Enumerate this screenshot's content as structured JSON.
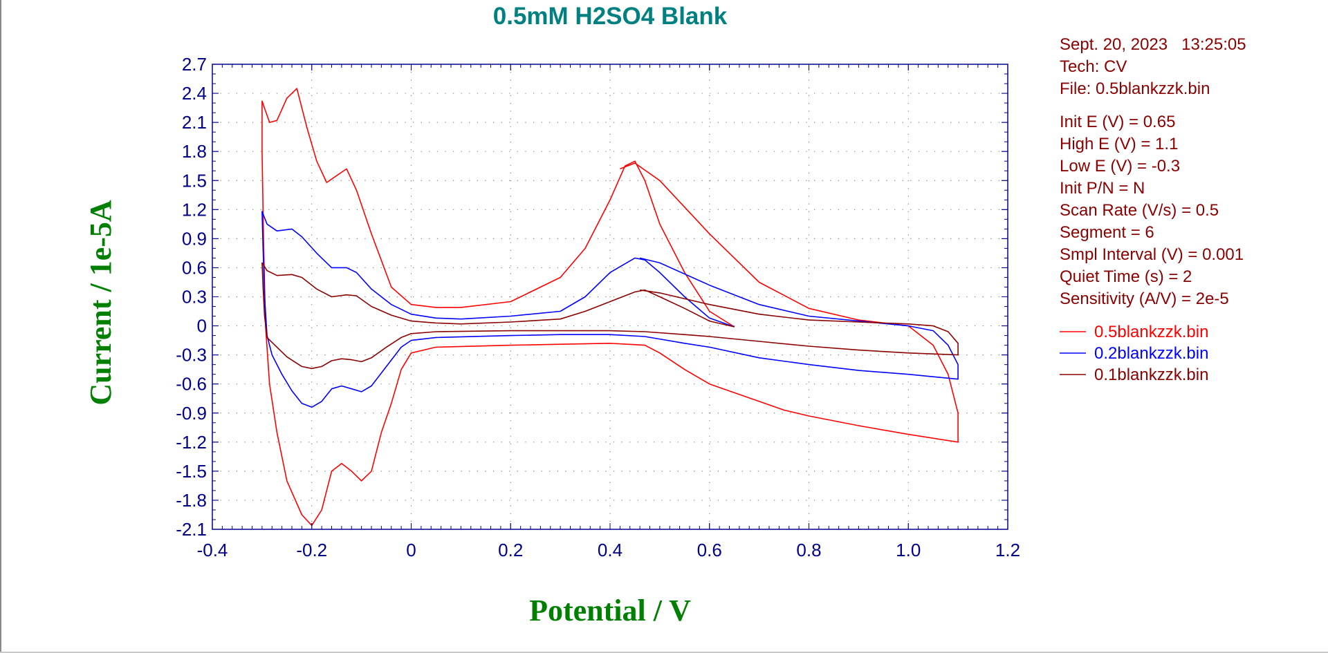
{
  "chart_data": {
    "type": "line",
    "title": "0.5mM H2SO4 Blank",
    "xlabel": "Potential / V",
    "ylabel": "Current / 1e-5A",
    "xlim": [
      -0.4,
      1.2
    ],
    "ylim": [
      2.7,
      -2.1
    ],
    "x_ticks": [
      "-0.4",
      "-0.2",
      "0",
      "0.2",
      "0.4",
      "0.6",
      "0.8",
      "1.0",
      "1.2"
    ],
    "y_ticks": [
      "-2.1",
      "-1.8",
      "-1.5",
      "-1.2",
      "-0.9",
      "-0.6",
      "-0.3",
      "0",
      "0.3",
      "0.6",
      "0.9",
      "1.2",
      "1.5",
      "1.8",
      "2.1",
      "2.4",
      "2.7"
    ],
    "grid": "dotted",
    "legend_position": "right",
    "series": [
      {
        "name": "0.5blankzzk.bin",
        "color": "#ff0000",
        "points": [
          [
            0.65,
            -0.01
          ],
          [
            0.6,
            0.15
          ],
          [
            0.55,
            0.55
          ],
          [
            0.5,
            1.05
          ],
          [
            0.47,
            1.5
          ],
          [
            0.45,
            1.7
          ],
          [
            0.43,
            1.65
          ],
          [
            0.4,
            1.3
          ],
          [
            0.35,
            0.8
          ],
          [
            0.3,
            0.5
          ],
          [
            0.2,
            0.25
          ],
          [
            0.1,
            0.19
          ],
          [
            0.05,
            0.19
          ],
          [
            0.0,
            0.22
          ],
          [
            -0.04,
            0.4
          ],
          [
            -0.08,
            0.95
          ],
          [
            -0.11,
            1.4
          ],
          [
            -0.13,
            1.62
          ],
          [
            -0.15,
            1.55
          ],
          [
            -0.17,
            1.48
          ],
          [
            -0.19,
            1.7
          ],
          [
            -0.21,
            2.05
          ],
          [
            -0.23,
            2.45
          ],
          [
            -0.25,
            2.35
          ],
          [
            -0.27,
            2.12
          ],
          [
            -0.285,
            2.1
          ],
          [
            -0.3,
            2.32
          ],
          [
            -0.3,
            1.8
          ],
          [
            -0.297,
            0.9
          ],
          [
            -0.293,
            0.0
          ],
          [
            -0.285,
            -0.6
          ],
          [
            -0.27,
            -1.1
          ],
          [
            -0.25,
            -1.6
          ],
          [
            -0.22,
            -1.95
          ],
          [
            -0.2,
            -2.06
          ],
          [
            -0.18,
            -1.9
          ],
          [
            -0.16,
            -1.5
          ],
          [
            -0.14,
            -1.42
          ],
          [
            -0.12,
            -1.5
          ],
          [
            -0.1,
            -1.6
          ],
          [
            -0.08,
            -1.5
          ],
          [
            -0.06,
            -1.1
          ],
          [
            -0.04,
            -0.8
          ],
          [
            -0.02,
            -0.45
          ],
          [
            0.0,
            -0.28
          ],
          [
            0.05,
            -0.22
          ],
          [
            0.2,
            -0.2
          ],
          [
            0.3,
            -0.19
          ],
          [
            0.4,
            -0.18
          ],
          [
            0.47,
            -0.2
          ],
          [
            0.5,
            -0.28
          ],
          [
            0.55,
            -0.45
          ],
          [
            0.6,
            -0.6
          ],
          [
            0.7,
            -0.78
          ],
          [
            0.75,
            -0.87
          ],
          [
            0.8,
            -0.93
          ],
          [
            0.9,
            -1.03
          ],
          [
            1.0,
            -1.12
          ],
          [
            1.1,
            -1.2
          ],
          [
            1.1,
            -0.9
          ],
          [
            1.08,
            -0.5
          ],
          [
            1.05,
            -0.2
          ],
          [
            1.0,
            0.0
          ],
          [
            0.9,
            0.06
          ],
          [
            0.8,
            0.18
          ],
          [
            0.7,
            0.45
          ],
          [
            0.6,
            0.95
          ],
          [
            0.5,
            1.5
          ],
          [
            0.45,
            1.68
          ],
          [
            0.42,
            1.62
          ]
        ]
      },
      {
        "name": "0.2blankzzk.bin",
        "color": "#0000ff",
        "points": [
          [
            0.65,
            -0.01
          ],
          [
            0.6,
            0.08
          ],
          [
            0.55,
            0.3
          ],
          [
            0.5,
            0.55
          ],
          [
            0.47,
            0.68
          ],
          [
            0.45,
            0.7
          ],
          [
            0.4,
            0.55
          ],
          [
            0.35,
            0.3
          ],
          [
            0.3,
            0.15
          ],
          [
            0.2,
            0.1
          ],
          [
            0.1,
            0.07
          ],
          [
            0.05,
            0.08
          ],
          [
            0.0,
            0.12
          ],
          [
            -0.04,
            0.22
          ],
          [
            -0.08,
            0.38
          ],
          [
            -0.11,
            0.55
          ],
          [
            -0.13,
            0.6
          ],
          [
            -0.16,
            0.6
          ],
          [
            -0.19,
            0.75
          ],
          [
            -0.22,
            0.92
          ],
          [
            -0.24,
            1.0
          ],
          [
            -0.27,
            0.98
          ],
          [
            -0.29,
            1.05
          ],
          [
            -0.3,
            1.18
          ],
          [
            -0.298,
            0.8
          ],
          [
            -0.295,
            0.3
          ],
          [
            -0.29,
            -0.1
          ],
          [
            -0.28,
            -0.3
          ],
          [
            -0.26,
            -0.5
          ],
          [
            -0.24,
            -0.67
          ],
          [
            -0.22,
            -0.8
          ],
          [
            -0.2,
            -0.84
          ],
          [
            -0.18,
            -0.78
          ],
          [
            -0.16,
            -0.65
          ],
          [
            -0.14,
            -0.62
          ],
          [
            -0.12,
            -0.65
          ],
          [
            -0.1,
            -0.68
          ],
          [
            -0.08,
            -0.62
          ],
          [
            -0.05,
            -0.42
          ],
          [
            -0.02,
            -0.22
          ],
          [
            0.0,
            -0.15
          ],
          [
            0.05,
            -0.12
          ],
          [
            0.2,
            -0.1
          ],
          [
            0.3,
            -0.09
          ],
          [
            0.4,
            -0.09
          ],
          [
            0.47,
            -0.11
          ],
          [
            0.55,
            -0.18
          ],
          [
            0.6,
            -0.22
          ],
          [
            0.7,
            -0.33
          ],
          [
            0.8,
            -0.4
          ],
          [
            0.9,
            -0.46
          ],
          [
            1.0,
            -0.5
          ],
          [
            1.1,
            -0.55
          ],
          [
            1.1,
            -0.4
          ],
          [
            1.08,
            -0.2
          ],
          [
            1.05,
            -0.05
          ],
          [
            1.0,
            0.0
          ],
          [
            0.9,
            0.05
          ],
          [
            0.8,
            0.1
          ],
          [
            0.7,
            0.22
          ],
          [
            0.6,
            0.42
          ],
          [
            0.5,
            0.65
          ],
          [
            0.46,
            0.7
          ]
        ]
      },
      {
        "name": "0.1blankzzk.bin",
        "color": "#8b0000",
        "points": [
          [
            0.65,
            -0.01
          ],
          [
            0.6,
            0.05
          ],
          [
            0.55,
            0.18
          ],
          [
            0.5,
            0.3
          ],
          [
            0.47,
            0.37
          ],
          [
            0.45,
            0.35
          ],
          [
            0.4,
            0.25
          ],
          [
            0.35,
            0.15
          ],
          [
            0.3,
            0.07
          ],
          [
            0.2,
            0.04
          ],
          [
            0.1,
            0.02
          ],
          [
            0.05,
            0.03
          ],
          [
            0.0,
            0.05
          ],
          [
            -0.04,
            0.11
          ],
          [
            -0.08,
            0.2
          ],
          [
            -0.11,
            0.31
          ],
          [
            -0.13,
            0.32
          ],
          [
            -0.16,
            0.3
          ],
          [
            -0.19,
            0.38
          ],
          [
            -0.22,
            0.5
          ],
          [
            -0.24,
            0.53
          ],
          [
            -0.27,
            0.52
          ],
          [
            -0.29,
            0.57
          ],
          [
            -0.3,
            0.65
          ],
          [
            -0.298,
            0.4
          ],
          [
            -0.295,
            0.1
          ],
          [
            -0.29,
            -0.12
          ],
          [
            -0.27,
            -0.22
          ],
          [
            -0.25,
            -0.32
          ],
          [
            -0.22,
            -0.42
          ],
          [
            -0.2,
            -0.44
          ],
          [
            -0.18,
            -0.42
          ],
          [
            -0.16,
            -0.36
          ],
          [
            -0.14,
            -0.34
          ],
          [
            -0.12,
            -0.35
          ],
          [
            -0.1,
            -0.37
          ],
          [
            -0.08,
            -0.33
          ],
          [
            -0.05,
            -0.22
          ],
          [
            -0.02,
            -0.12
          ],
          [
            0.0,
            -0.08
          ],
          [
            0.05,
            -0.06
          ],
          [
            0.2,
            -0.05
          ],
          [
            0.3,
            -0.05
          ],
          [
            0.4,
            -0.05
          ],
          [
            0.47,
            -0.06
          ],
          [
            0.55,
            -0.09
          ],
          [
            0.6,
            -0.11
          ],
          [
            0.7,
            -0.16
          ],
          [
            0.8,
            -0.21
          ],
          [
            0.9,
            -0.25
          ],
          [
            1.0,
            -0.28
          ],
          [
            1.1,
            -0.3
          ],
          [
            1.1,
            -0.18
          ],
          [
            1.08,
            -0.06
          ],
          [
            1.05,
            0.0
          ],
          [
            1.0,
            0.02
          ],
          [
            0.9,
            0.04
          ],
          [
            0.8,
            0.06
          ],
          [
            0.7,
            0.12
          ],
          [
            0.6,
            0.22
          ],
          [
            0.5,
            0.34
          ],
          [
            0.46,
            0.37
          ]
        ]
      }
    ]
  },
  "info": {
    "date_time": "Sept. 20, 2023   13:25:05",
    "tech": "Tech: CV",
    "file": "File: 0.5blankzzk.bin",
    "init_e": "Init E (V) = 0.65",
    "high_e": "High E (V) = 1.1",
    "low_e": "Low E (V) = -0.3",
    "init_pn": "Init P/N = N",
    "scan_rate": "Scan Rate (V/s) = 0.5",
    "segment": "Segment = 6",
    "smpl_interval": "Smpl Interval (V) = 0.001",
    "quiet_time": "Quiet Time (s) = 2",
    "sensitivity": "Sensitivity (A/V) = 2e-5"
  },
  "colors": {
    "axis": "#00008b",
    "title": "#008080",
    "axis_title": "#008000",
    "info_text": "#8b0000",
    "grid": "#7f7f7f"
  }
}
